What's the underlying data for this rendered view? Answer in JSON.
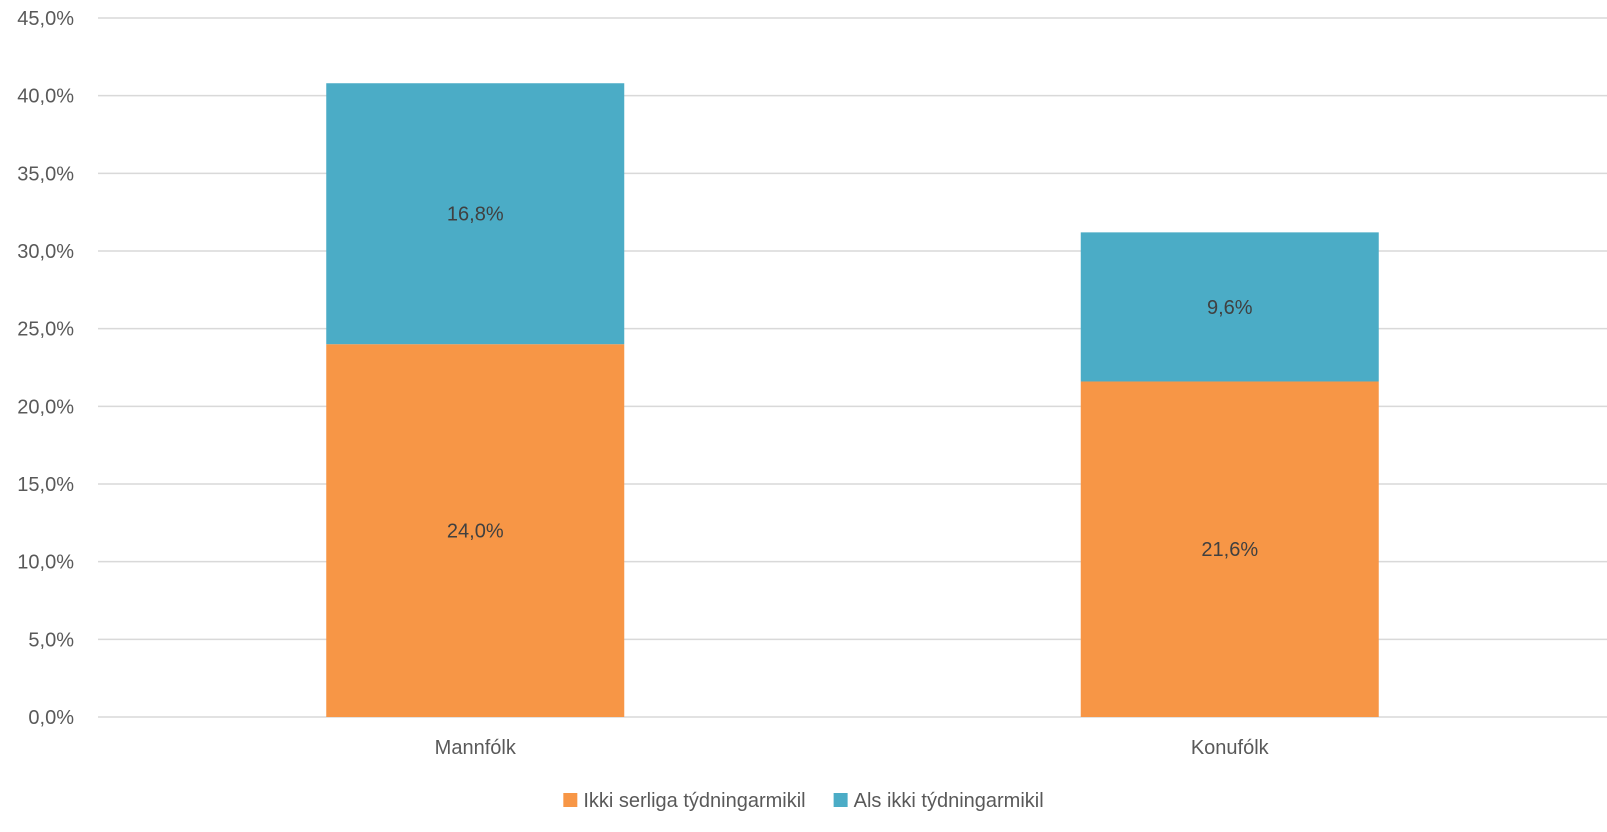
{
  "chart_data": {
    "type": "bar",
    "stacked": true,
    "categories": [
      "Mannfólk",
      "Konufólk"
    ],
    "series": [
      {
        "name": "Ikki serliga týdningarmikil",
        "values": [
          24.0,
          21.6
        ],
        "labels": [
          "24,0%",
          "21,6%"
        ],
        "color": "#F79646"
      },
      {
        "name": "Als ikki týdningarmikil",
        "values": [
          16.8,
          9.6
        ],
        "labels": [
          "16,8%",
          "9,6%"
        ],
        "color": "#4BACC6"
      }
    ],
    "ylim": [
      0,
      45
    ],
    "yticks": [
      0,
      5,
      10,
      15,
      20,
      25,
      30,
      35,
      40,
      45
    ],
    "ytick_labels": [
      "0,0%",
      "5,0%",
      "10,0%",
      "15,0%",
      "20,0%",
      "25,0%",
      "30,0%",
      "35,0%",
      "40,0%",
      "45,0%"
    ],
    "grid": true,
    "gridline_color": "#D9D9D9",
    "legend_position": "bottom",
    "title": "",
    "xlabel": "",
    "ylabel": ""
  }
}
